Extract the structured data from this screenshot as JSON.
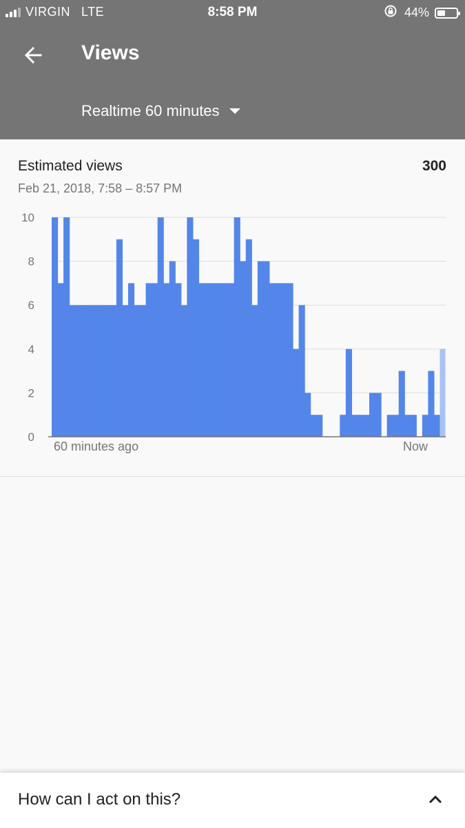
{
  "status_bar": {
    "carrier": "VIRGIN",
    "network": "LTE",
    "time": "8:58 PM",
    "battery": "44%",
    "battery_level": 0.44,
    "signal_bars": 3
  },
  "app_bar": {
    "back_icon": "arrow-back-icon",
    "title": "Views",
    "range_selector": "Realtime 60 minutes",
    "range_icon": "caret-down-icon"
  },
  "card": {
    "metric_label": "Estimated views",
    "metric_value": "300",
    "date_range": "Feb 21, 2018, 7:58 – 8:57 PM"
  },
  "chart_data": {
    "type": "bar",
    "title": "",
    "x_start_label": "60 minutes ago",
    "x_end_label": "Now",
    "yticks": [
      0,
      2,
      4,
      6,
      8,
      10
    ],
    "ylim": [
      0,
      10
    ],
    "grid": true,
    "bar_color": "#5386e8",
    "partial_bar_color": "#a8c3f2",
    "values": [
      10,
      7,
      10,
      6,
      6,
      6,
      6,
      6,
      6,
      6,
      6,
      9,
      6,
      7,
      6,
      6,
      7,
      7,
      10,
      7,
      8,
      7,
      6,
      10,
      9,
      7,
      7,
      7,
      7,
      7,
      7,
      10,
      8,
      9,
      6,
      8,
      8,
      7,
      7,
      7,
      7,
      4,
      6,
      2,
      1,
      1,
      0,
      0,
      0,
      1,
      4,
      1,
      1,
      1,
      2,
      2,
      0,
      1,
      1,
      3,
      1,
      1,
      0,
      1,
      3,
      1,
      4
    ],
    "partial_last": true
  },
  "bottom_sheet": {
    "label": "How can I act on this?",
    "icon": "chevron-up-icon"
  }
}
